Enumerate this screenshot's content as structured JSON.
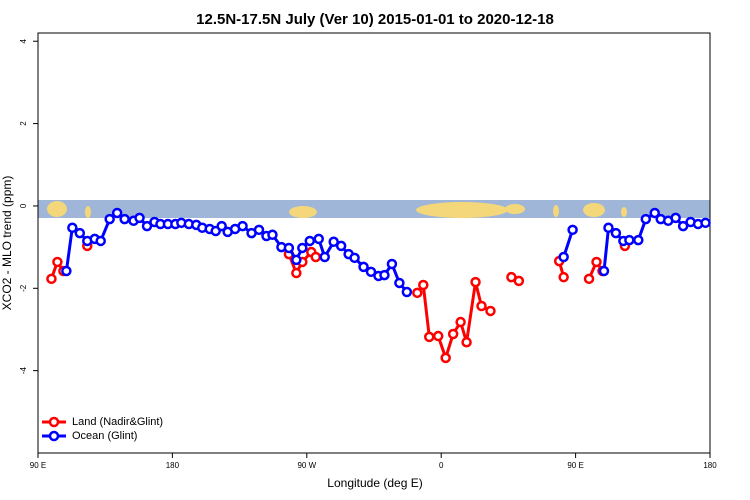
{
  "chart_data": {
    "type": "line",
    "title": "12.5N-17.5N July (Ver 10)   2015-01-01 to 2020-12-18",
    "x_label": "Longitude (deg E)",
    "y_label": "XCO2 - MLO trend (ppm)",
    "xlim": [
      90,
      540
    ],
    "xticks": [
      {
        "value": 90,
        "label": "90 E"
      },
      180,
      {
        "value": 270,
        "label": "90 W"
      },
      {
        "value": 360,
        "label": "0"
      },
      {
        "value": 450,
        "label": "90 E"
      },
      {
        "value": 540,
        "label": "180"
      }
    ],
    "ylim": [
      -6,
      4.2
    ],
    "yticks": [
      4,
      2,
      0,
      -2,
      -4
    ],
    "legend": "bottom-left",
    "series": [
      {
        "name": "Land (Nadir&Glint)",
        "color": "#ff0000",
        "x": [
          99,
          103,
          107,
          null,
          123,
          null,
          258,
          263,
          267,
          273,
          276,
          null,
          344,
          348,
          352,
          358,
          363,
          368,
          373,
          377,
          383,
          387,
          393,
          null,
          407,
          412,
          null,
          439,
          442,
          null,
          459,
          464,
          468,
          null,
          483
        ],
        "values": [
          -1.77,
          -1.36,
          -1.58,
          null,
          -0.97,
          null,
          -1.17,
          -1.63,
          -1.36,
          -1.12,
          -1.24,
          null,
          -2.11,
          -1.92,
          -3.18,
          -3.16,
          -3.69,
          -3.11,
          -2.82,
          -3.31,
          -1.85,
          -2.43,
          -2.55,
          null,
          -1.73,
          -1.82,
          null,
          -1.34,
          -1.73,
          null,
          -1.77,
          -1.36,
          -1.58,
          null,
          -0.97
        ]
      },
      {
        "name": "Ocean (Glint)",
        "color": "#0000ff",
        "x": [
          109,
          113,
          118,
          123,
          128,
          132,
          138,
          143,
          148,
          154,
          158,
          163,
          168,
          172,
          177,
          182,
          186,
          191,
          196,
          200,
          205,
          209,
          213,
          217,
          222,
          227,
          233,
          238,
          243,
          247,
          253,
          258,
          263,
          267,
          272,
          278,
          282,
          288,
          293,
          298,
          302,
          308,
          313,
          318,
          322,
          327,
          332,
          337,
          null,
          442,
          448,
          null,
          469,
          472,
          477,
          482,
          486,
          492,
          497,
          503,
          507,
          512,
          517,
          522,
          527,
          532,
          537
        ],
        "values": [
          -1.58,
          -0.53,
          -0.66,
          -0.85,
          -0.8,
          -0.85,
          -0.32,
          -0.17,
          -0.32,
          -0.36,
          -0.29,
          -0.49,
          -0.39,
          -0.44,
          -0.44,
          -0.44,
          -0.41,
          -0.44,
          -0.46,
          -0.53,
          -0.56,
          -0.61,
          -0.49,
          -0.63,
          -0.56,
          -0.49,
          -0.66,
          -0.58,
          -0.73,
          -0.7,
          -1.0,
          -1.02,
          -1.31,
          -1.02,
          -0.85,
          -0.8,
          -1.24,
          -0.87,
          -0.97,
          -1.17,
          -1.26,
          -1.48,
          -1.6,
          -1.7,
          -1.68,
          -1.41,
          -1.87,
          -2.09,
          null,
          -1.24,
          -0.58,
          null,
          -1.58,
          -0.53,
          -0.66,
          -0.85,
          -0.83,
          -0.83,
          -0.32,
          -0.17,
          -0.32,
          -0.36,
          -0.29,
          -0.49,
          -0.39,
          -0.44,
          -0.41
        ]
      }
    ]
  }
}
